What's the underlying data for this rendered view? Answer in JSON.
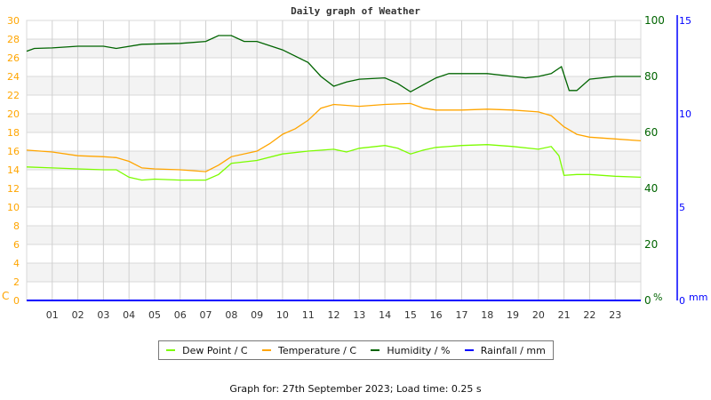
{
  "chart_data": {
    "type": "line",
    "title": "Daily graph of Weather",
    "x_ticks": [
      "01",
      "02",
      "03",
      "04",
      "05",
      "06",
      "07",
      "08",
      "09",
      "10",
      "11",
      "12",
      "13",
      "14",
      "15",
      "16",
      "17",
      "18",
      "19",
      "20",
      "21",
      "22",
      "23"
    ],
    "xlim": [
      0,
      24
    ],
    "left_axis": {
      "unit": "C",
      "ylim": [
        0,
        30
      ],
      "ticks": [
        "0",
        "2",
        "4",
        "6",
        "8",
        "10",
        "12",
        "14",
        "16",
        "18",
        "20",
        "22",
        "24",
        "26",
        "28",
        "30"
      ],
      "color": "#ffa500"
    },
    "right_axis": {
      "unit": "%",
      "ylim": [
        0,
        100
      ],
      "ticks": [
        "0",
        "20",
        "40",
        "60",
        "80",
        "100"
      ],
      "color": "#006400"
    },
    "rain_axis": {
      "unit": "mm",
      "ylim": [
        0,
        15
      ],
      "ticks": [
        "0",
        "5",
        "10",
        "15"
      ],
      "color": "#0000ff"
    },
    "series": [
      {
        "name": "Dew Point / C",
        "axis": "left",
        "color": "#7cfc00",
        "x": [
          0,
          1,
          2,
          3,
          3.5,
          4,
          4.5,
          5,
          6,
          7,
          7.5,
          8,
          9,
          10,
          11,
          12,
          12.5,
          13,
          14,
          14.5,
          15,
          15.5,
          16,
          17,
          18,
          19,
          20,
          20.5,
          20.8,
          21,
          21.5,
          22,
          23,
          24
        ],
        "y": [
          14.3,
          14.2,
          14.1,
          14.0,
          14.0,
          13.2,
          12.9,
          13.0,
          12.9,
          12.9,
          13.5,
          14.7,
          15.0,
          15.7,
          16.0,
          16.2,
          15.9,
          16.3,
          16.6,
          16.3,
          15.7,
          16.1,
          16.4,
          16.6,
          16.7,
          16.5,
          16.2,
          16.5,
          15.5,
          13.4,
          13.5,
          13.5,
          13.3,
          13.2
        ]
      },
      {
        "name": "Temperature / C",
        "axis": "left",
        "color": "#ffa500",
        "x": [
          0,
          1,
          2,
          3,
          3.5,
          4,
          4.5,
          5,
          6,
          7,
          7.5,
          8,
          9,
          9.5,
          10,
          10.5,
          11,
          11.5,
          12,
          13,
          14,
          15,
          15.5,
          16,
          17,
          18,
          19,
          20,
          20.5,
          21,
          21.5,
          22,
          23,
          24
        ],
        "y": [
          16.1,
          15.9,
          15.5,
          15.4,
          15.3,
          14.9,
          14.2,
          14.1,
          14.0,
          13.8,
          14.5,
          15.4,
          16.0,
          16.8,
          17.8,
          18.4,
          19.3,
          20.6,
          21.0,
          20.8,
          21.0,
          21.1,
          20.6,
          20.4,
          20.4,
          20.5,
          20.4,
          20.2,
          19.8,
          18.6,
          17.8,
          17.5,
          17.3,
          17.1
        ]
      },
      {
        "name": "Humidity / %",
        "axis": "right",
        "color": "#006400",
        "x": [
          0,
          0.3,
          1,
          2,
          3,
          3.5,
          4.5,
          6,
          7,
          7.5,
          8,
          8.5,
          9,
          10,
          11,
          11.5,
          12,
          12.5,
          13,
          14,
          14.5,
          15,
          15.5,
          16,
          16.5,
          17,
          18,
          19,
          19.5,
          20,
          20.5,
          20.9,
          21.2,
          21.5,
          22,
          23,
          24
        ],
        "y": [
          89,
          90,
          90.2,
          90.8,
          90.8,
          90,
          91.5,
          91.8,
          92.5,
          94.6,
          94.6,
          92.5,
          92.5,
          89.5,
          85,
          80,
          76.5,
          78,
          79,
          79.5,
          77.5,
          74.5,
          77,
          79.5,
          81,
          81,
          81,
          80,
          79.5,
          80,
          81,
          83.5,
          75,
          75,
          79,
          80,
          80
        ]
      },
      {
        "name": "Rainfall / mm",
        "axis": "rain",
        "color": "#0000ff",
        "x": [
          0,
          24
        ],
        "y": [
          0,
          0
        ]
      }
    ],
    "grid": true,
    "legend_position": "bottom"
  },
  "footer": "Graph for: 27th September 2023; Load time: 0.25 s"
}
